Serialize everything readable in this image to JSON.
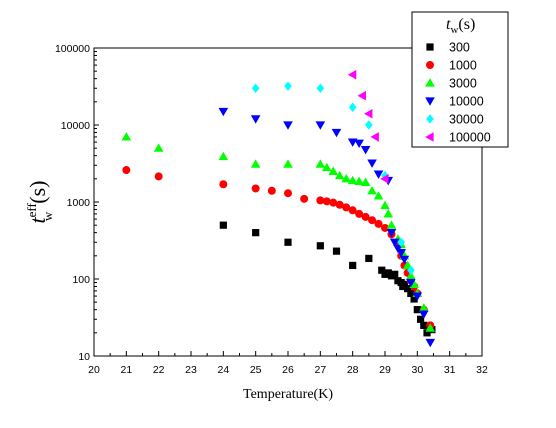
{
  "chart_data": {
    "type": "scatter",
    "title": "",
    "xlabel": "Temperature(K)",
    "ylabel": "t_w^eff (s)",
    "xscale": "linear",
    "yscale": "log",
    "xlim": [
      20,
      32
    ],
    "ylim": [
      10,
      100000
    ],
    "x_ticks": [
      "20",
      "21",
      "22",
      "23",
      "24",
      "25",
      "26",
      "27",
      "28",
      "29",
      "30",
      "31",
      "32"
    ],
    "y_ticks": [
      "10",
      "100",
      "1000",
      "10000",
      "100000"
    ],
    "grid": false,
    "legend": {
      "placement": "top-right",
      "title": "t_w(s)",
      "title_main": "t",
      "title_sub": "w",
      "title_tail": "(s)"
    },
    "ylabel_parts": {
      "main": "t",
      "sup": "eff",
      "sub": "w",
      "tail": "(s)"
    },
    "series": [
      {
        "name": "300",
        "marker": "square",
        "color": "#000000",
        "points": [
          [
            24,
            500
          ],
          [
            25,
            400
          ],
          [
            26,
            300
          ],
          [
            27,
            270
          ],
          [
            27.5,
            230
          ],
          [
            28,
            150
          ],
          [
            28.5,
            185
          ],
          [
            28.9,
            130
          ],
          [
            29,
            115
          ],
          [
            29.1,
            120
          ],
          [
            29.2,
            110
          ],
          [
            29.3,
            115
          ],
          [
            29.4,
            95
          ],
          [
            29.5,
            90
          ],
          [
            29.55,
            80
          ],
          [
            29.6,
            85
          ],
          [
            29.7,
            75
          ],
          [
            29.8,
            65
          ],
          [
            29.9,
            55
          ],
          [
            30,
            40
          ],
          [
            30.1,
            30
          ],
          [
            30.2,
            25
          ],
          [
            30.3,
            20
          ],
          [
            30.45,
            22
          ]
        ]
      },
      {
        "name": "1000",
        "marker": "circle",
        "color": "#ff0000",
        "points": [
          [
            21,
            2600
          ],
          [
            22,
            2150
          ],
          [
            24,
            1700
          ],
          [
            25,
            1500
          ],
          [
            25.5,
            1400
          ],
          [
            26,
            1300
          ],
          [
            26.5,
            1100
          ],
          [
            27,
            1050
          ],
          [
            27.2,
            1020
          ],
          [
            27.4,
            980
          ],
          [
            27.6,
            920
          ],
          [
            27.8,
            850
          ],
          [
            28,
            780
          ],
          [
            28.2,
            700
          ],
          [
            28.4,
            640
          ],
          [
            28.6,
            580
          ],
          [
            28.8,
            520
          ],
          [
            29,
            460
          ],
          [
            29.2,
            380
          ],
          [
            29.4,
            280
          ],
          [
            29.5,
            200
          ],
          [
            29.6,
            150
          ],
          [
            29.7,
            120
          ],
          [
            29.8,
            95
          ],
          [
            29.9,
            80
          ],
          [
            30,
            65
          ],
          [
            30.2,
            40
          ],
          [
            30.4,
            25
          ]
        ]
      },
      {
        "name": "3000",
        "marker": "triangle-up",
        "color": "#00ff00",
        "points": [
          [
            21,
            7000
          ],
          [
            22,
            5000
          ],
          [
            24,
            3900
          ],
          [
            25,
            3100
          ],
          [
            26,
            3100
          ],
          [
            27,
            3100
          ],
          [
            27.2,
            2800
          ],
          [
            27.4,
            2500
          ],
          [
            27.6,
            2200
          ],
          [
            27.8,
            2000
          ],
          [
            28,
            1900
          ],
          [
            28.2,
            1850
          ],
          [
            28.4,
            1800
          ],
          [
            28.6,
            1400
          ],
          [
            28.8,
            1200
          ],
          [
            29,
            900
          ],
          [
            29.1,
            700
          ],
          [
            29.2,
            500
          ],
          [
            29.4,
            330
          ],
          [
            29.5,
            280
          ],
          [
            29.6,
            200
          ],
          [
            29.7,
            150
          ],
          [
            29.8,
            110
          ],
          [
            29.9,
            85
          ],
          [
            30,
            65
          ],
          [
            30.2,
            42
          ],
          [
            30.4,
            23
          ]
        ]
      },
      {
        "name": "10000",
        "marker": "triangle-down",
        "color": "#0000ff",
        "points": [
          [
            24,
            15000
          ],
          [
            25,
            12000
          ],
          [
            26,
            10000
          ],
          [
            27,
            10000
          ],
          [
            27.5,
            8000
          ],
          [
            28,
            6000
          ],
          [
            28.2,
            5800
          ],
          [
            28.4,
            4800
          ],
          [
            28.6,
            3200
          ],
          [
            28.8,
            2300
          ],
          [
            29.1,
            1900
          ],
          [
            29.2,
            400
          ],
          [
            29.3,
            300
          ],
          [
            29.4,
            250
          ],
          [
            29.5,
            220
          ],
          [
            29.6,
            180
          ],
          [
            29.8,
            90
          ],
          [
            30,
            60
          ],
          [
            30.2,
            35
          ],
          [
            30.4,
            15
          ]
        ]
      },
      {
        "name": "30000",
        "marker": "diamond",
        "color": "#00ffff",
        "points": [
          [
            25,
            30000
          ],
          [
            26,
            32000
          ],
          [
            27,
            30000
          ],
          [
            28,
            17000
          ],
          [
            28.5,
            10000
          ],
          [
            29,
            2200
          ],
          [
            29.5,
            300
          ],
          [
            29.8,
            130
          ]
        ]
      },
      {
        "name": "100000",
        "marker": "triangle-left",
        "color": "#ff00ff",
        "points": [
          [
            28,
            45000
          ],
          [
            28.3,
            24000
          ],
          [
            28.5,
            14000
          ],
          [
            28.7,
            7000
          ],
          [
            29,
            2000
          ]
        ]
      }
    ]
  }
}
